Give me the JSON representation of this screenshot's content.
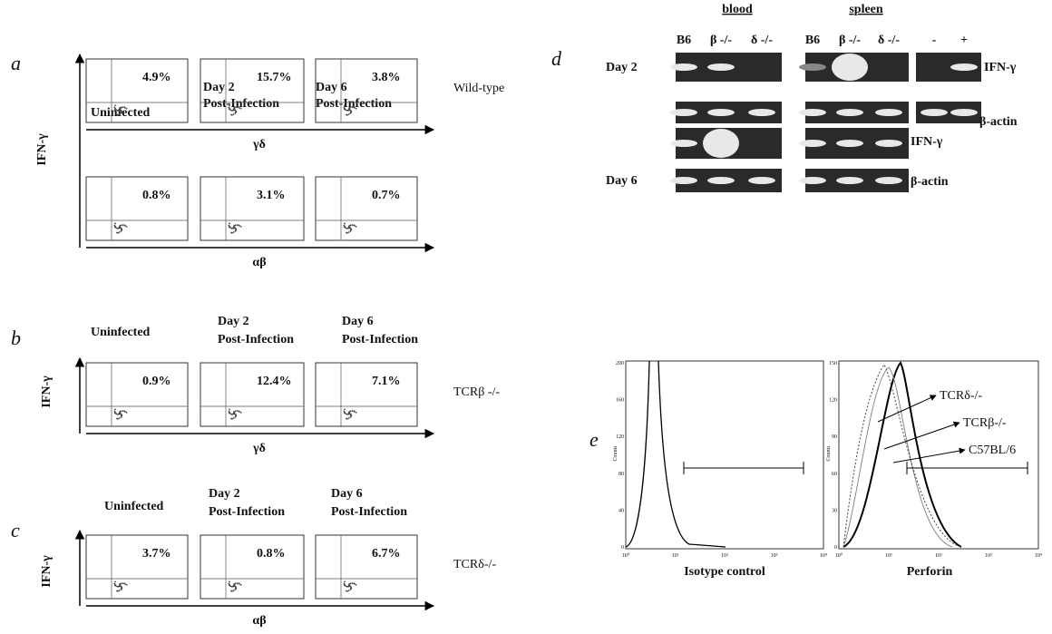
{
  "panels": [
    {
      "letter": "a",
      "y_label": "IFN-γ",
      "headers": [
        [
          "Uninfected"
        ],
        [
          "Day 2",
          "Post-Infection"
        ],
        [
          "Day 6",
          "Post-Infection"
        ]
      ],
      "rows": [
        {
          "values": [
            "4.9%",
            "15.7%",
            "3.8%"
          ],
          "x_label": "γδ",
          "note": "Wild-type"
        },
        {
          "values": [
            "0.8%",
            "3.1%",
            "0.7%"
          ],
          "x_label": "αβ"
        }
      ]
    },
    {
      "letter": "b",
      "y_label": "IFN-γ",
      "headers": [
        [
          "Uninfected"
        ],
        [
          "Day 2",
          "Post-Infection"
        ],
        [
          "Day 6",
          "Post-Infection"
        ]
      ],
      "rows": [
        {
          "values": [
            "0.9%",
            "12.4%",
            "7.1%"
          ],
          "x_label": "γδ",
          "note": "TCRβ -/-"
        }
      ]
    },
    {
      "letter": "c",
      "y_label": "IFN-γ",
      "headers": [
        [
          "Uninfected"
        ],
        [
          "Day 2",
          "Post-Infection"
        ],
        [
          "Day 6",
          "Post-Infection"
        ]
      ],
      "rows": [
        {
          "values": [
            "3.7%",
            "0.8%",
            "6.7%"
          ],
          "x_label": "αβ",
          "note": "TCRδ-/-"
        }
      ]
    },
    {
      "letter": "d",
      "groups": [
        "blood",
        "spleen"
      ],
      "lanes": [
        "B6",
        "β -/-",
        "δ -/-",
        "B6",
        "β -/-",
        "δ -/-",
        "-",
        "+"
      ],
      "days": [
        "Day 2",
        "Day 6"
      ],
      "genes": [
        "IFN-γ",
        "β-actin",
        "IFN-γ",
        "β-actin"
      ]
    },
    {
      "letter": "e",
      "y_label": "Counts",
      "left": {
        "x_label": "Isotype control",
        "yticks": [
          "200",
          "160",
          "120",
          "80",
          "40",
          "0"
        ]
      },
      "right": {
        "x_label": "Perforin",
        "yticks": [
          "150",
          "120",
          "90",
          "60",
          "30",
          "0"
        ]
      },
      "xticks": [
        "10⁰",
        "10¹",
        "10²",
        "10³",
        "10⁴"
      ],
      "legend": [
        "TCRδ-/-",
        "TCRβ-/-",
        "C57BL/6"
      ]
    }
  ]
}
